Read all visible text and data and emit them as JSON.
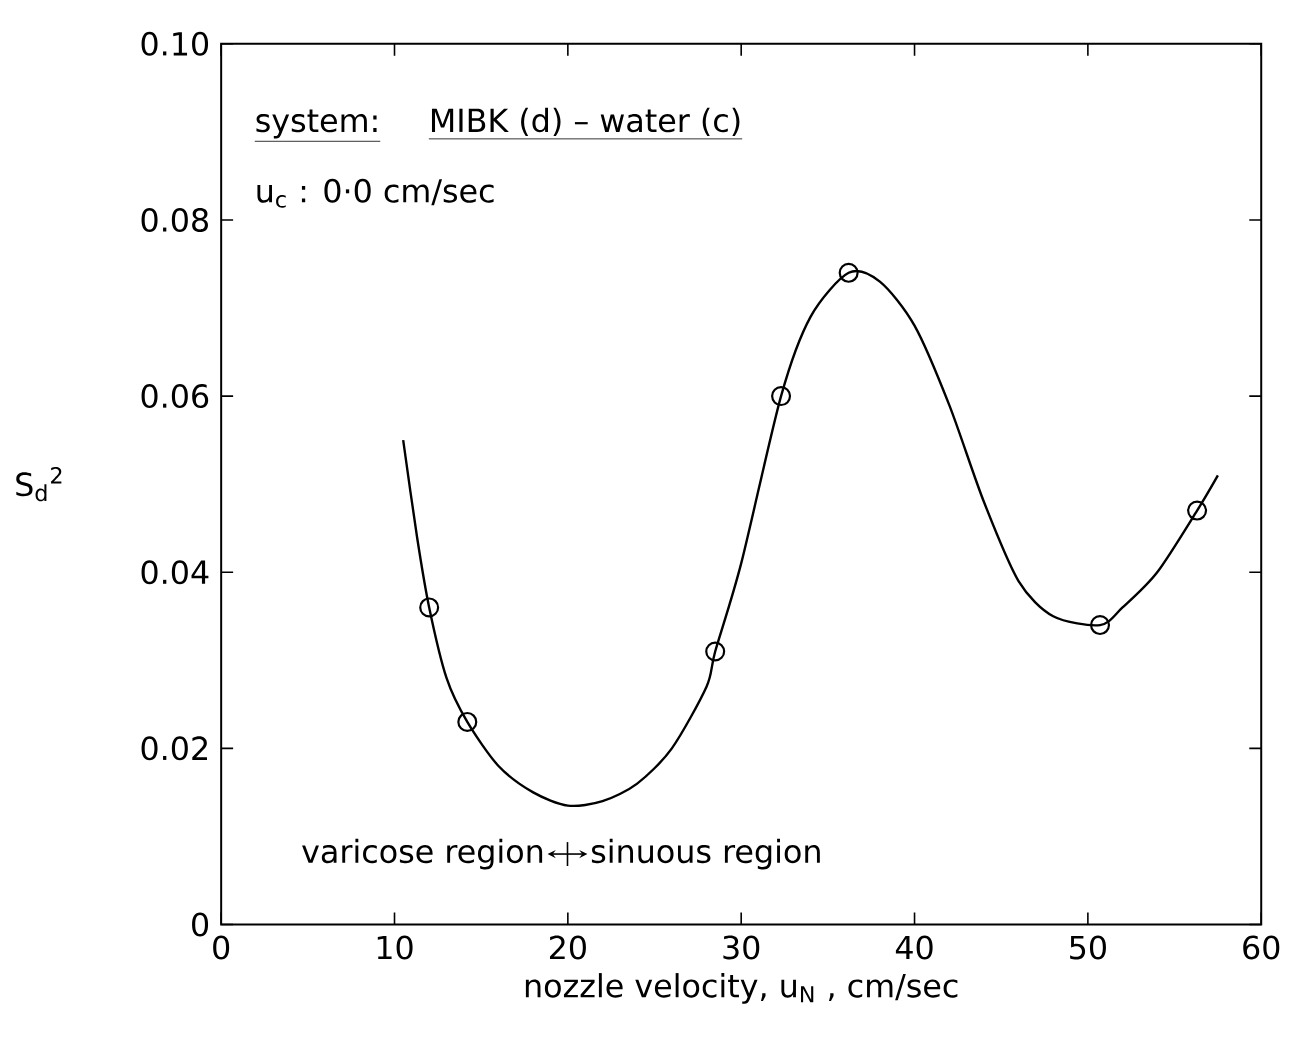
{
  "chart_data": {
    "type": "line",
    "xlabel": "nozzle velocity, u$_{N}$ , cm/sec",
    "ylabel": "S$_{d}$$^{2}$",
    "xlim": [
      0,
      60
    ],
    "xticks": [
      0,
      10,
      20,
      30,
      40,
      50,
      60
    ],
    "ylim": [
      0,
      0.1
    ],
    "yticks": [
      0,
      0.02,
      0.04,
      0.06,
      0.08,
      {
        "value": 0.1,
        "label": "0.10"
      }
    ],
    "series": [
      {
        "color": "#000000",
        "marker": "none",
        "line_style": "solid",
        "x": [
          10.5,
          11.3,
          12,
          13,
          14.2,
          16,
          18,
          20,
          22,
          24,
          26,
          28,
          28.5,
          30,
          32.3,
          34,
          36.2,
          38,
          40,
          42,
          44,
          46,
          48,
          50.7,
          52,
          54,
          56.3,
          57.5
        ],
        "values": [
          0.055,
          0.044,
          0.036,
          0.028,
          0.023,
          0.018,
          0.015,
          0.0135,
          0.014,
          0.016,
          0.02,
          0.027,
          0.031,
          0.041,
          0.06,
          0.069,
          0.074,
          0.073,
          0.068,
          0.059,
          0.048,
          0.039,
          0.035,
          0.034,
          0.036,
          0.04,
          0.047,
          0.051
        ]
      },
      {
        "type": "scatter",
        "color": "#000000",
        "marker": "circle",
        "x": [
          12,
          14.2,
          28.5,
          32.3,
          36.2,
          50.7,
          56.3
        ],
        "values": [
          0.036,
          0.023,
          0.031,
          0.06,
          0.074,
          0.034,
          0.047
        ]
      }
    ],
    "annotations": [
      "system:",
      "MIBK (d) – water (c)",
      "u$_{c}$  : 0·0 cm/sec",
      "varicose region",
      "sinuous region"
    ]
  }
}
